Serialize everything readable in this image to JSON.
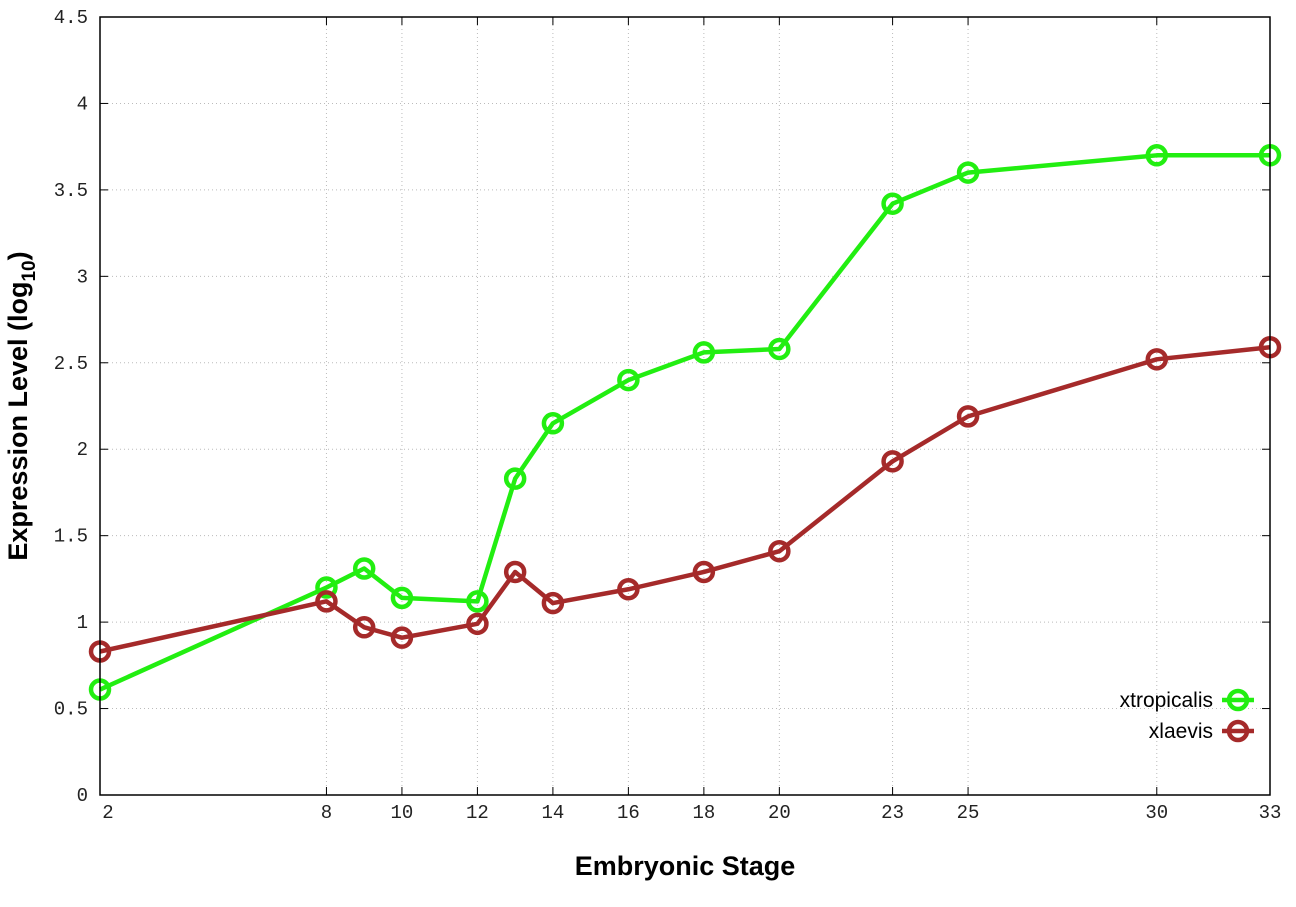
{
  "chart_data": {
    "type": "line",
    "title": "",
    "xlabel": "Embryonic Stage",
    "ylabel": "Expression Level (log10)",
    "ylabel_main": "Expression Level (log",
    "ylabel_sub": "10",
    "ylabel_close": ")",
    "x": [
      2,
      8,
      9,
      10,
      12,
      13,
      14,
      16,
      18,
      20,
      23,
      25,
      30,
      33
    ],
    "xticks": [
      2,
      8,
      10,
      12,
      14,
      16,
      18,
      20,
      23,
      25,
      30,
      33
    ],
    "xlim": [
      2,
      33
    ],
    "ylim": [
      0,
      4.5
    ],
    "yticks": [
      "0",
      "0.5",
      "1",
      "1.5",
      "2",
      "2.5",
      "3",
      "3.5",
      "4",
      "4.5"
    ],
    "grid": true,
    "legend_position": "bottom-right",
    "series": [
      {
        "name": "xtropicalis",
        "color": "#22ee11",
        "values": [
          0.61,
          1.2,
          1.31,
          1.14,
          1.12,
          1.83,
          2.15,
          2.4,
          2.56,
          2.58,
          3.42,
          3.6,
          3.7,
          3.7
        ]
      },
      {
        "name": "xlaevis",
        "color": "#a52a2a",
        "values": [
          0.83,
          1.12,
          0.97,
          0.91,
          0.99,
          1.29,
          1.11,
          1.19,
          1.29,
          1.41,
          1.93,
          2.19,
          2.52,
          2.59
        ]
      }
    ]
  }
}
